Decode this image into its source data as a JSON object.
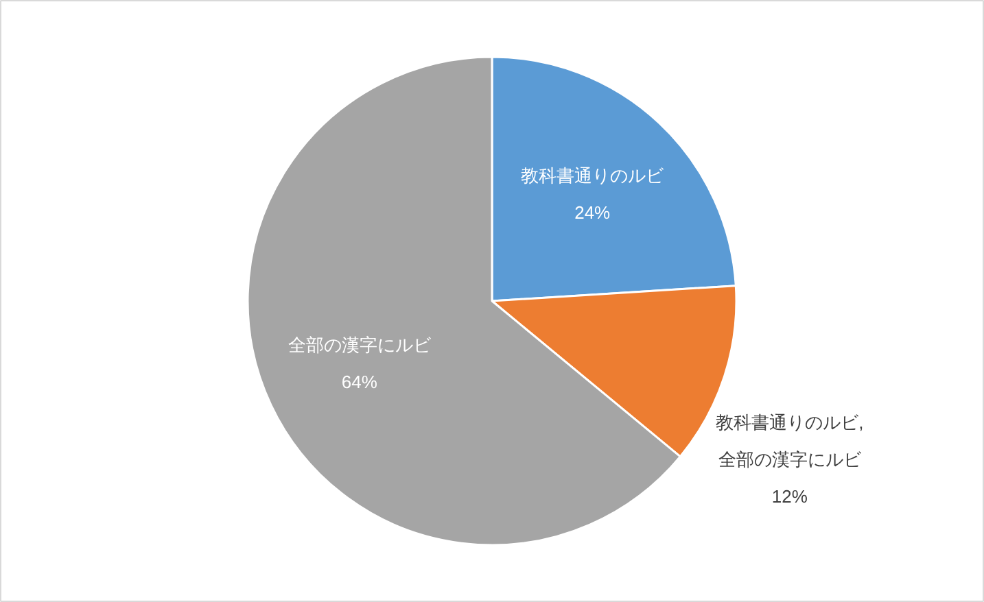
{
  "chart_data": {
    "type": "pie",
    "categories": [
      "教科書通りのルビ",
      "教科書通りのルビ, 全部の漢字にルビ",
      "全部の漢字にルビ"
    ],
    "values": [
      24,
      12,
      64
    ],
    "colors": [
      "#5b9bd5",
      "#ed7d31",
      "#a5a5a5"
    ],
    "value_labels": [
      "24%",
      "12%",
      "64%"
    ]
  }
}
